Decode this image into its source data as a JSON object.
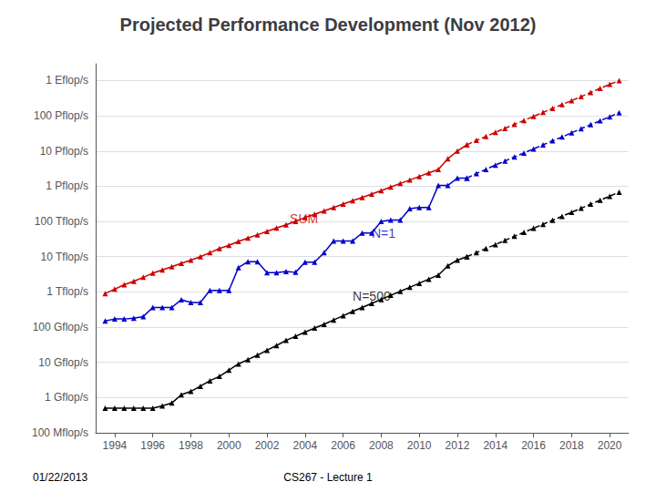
{
  "chart_data": {
    "type": "line",
    "title": "Projected Performance Development (Nov 2012)",
    "footer": [
      "01/22/2013",
      "CS267 - Lecture 1"
    ],
    "log": "y",
    "grid": true,
    "xlim": [
      1993.0,
      2021.0
    ],
    "xticks": [
      1994,
      1996,
      1998,
      2000,
      2002,
      2004,
      2006,
      2008,
      2010,
      2012,
      2014,
      2016,
      2018,
      2020
    ],
    "ylim": [
      100000000.0,
      3e+18
    ],
    "yticks": [
      {
        "value": 100000000.0,
        "label": "100 Mflop/s"
      },
      {
        "value": 1000000000.0,
        "label": "1 Gflop/s"
      },
      {
        "value": 10000000000.0,
        "label": "10 Gflop/s"
      },
      {
        "value": 100000000000.0,
        "label": "100 Gflop/s"
      },
      {
        "value": 1000000000000.0,
        "label": "1 Tflop/s"
      },
      {
        "value": 10000000000000.0,
        "label": "10 Tflop/s"
      },
      {
        "value": 100000000000000.0,
        "label": "100 Tflop/s"
      },
      {
        "value": 1000000000000000.0,
        "label": "1 Pflop/s"
      },
      {
        "value": 1e+16,
        "label": "10 Pflop/s"
      },
      {
        "value": 1e+17,
        "label": "100 Pflop/s"
      },
      {
        "value": 1e+18,
        "label": "1 Eflop/s"
      }
    ],
    "annotations": [
      {
        "text": "SUM",
        "x": 2003.2,
        "y": 80000000000000.0,
        "color": "#CC0000"
      },
      {
        "text": "N=1",
        "x": 2007.5,
        "y": 30000000000000.0,
        "color": "#0000CC"
      },
      {
        "text": "N=500",
        "x": 2006.5,
        "y": 500000000000.0,
        "color": "#000000"
      }
    ],
    "series": [
      {
        "color": "#CC0000",
        "line_style": "solid",
        "marker": "triangle",
        "x": [
          1993.5,
          1994.0,
          1994.5,
          1995.0,
          1995.5,
          1996.0,
          1996.5,
          1997.0,
          1997.5,
          1998.0,
          1998.5,
          1999.0,
          1999.5,
          2000.0,
          2000.5,
          2001.0,
          2001.5,
          2002.0,
          2002.5,
          2003.0,
          2003.5,
          2004.0,
          2004.5,
          2005.0,
          2005.5,
          2006.0,
          2006.5,
          2007.0,
          2007.5,
          2008.0,
          2008.5,
          2009.0,
          2009.5,
          2010.0,
          2010.5,
          2011.0,
          2011.5,
          2012.0,
          2012.5
        ],
        "values": [
          900000000000.0,
          1200000000000.0,
          1600000000000.0,
          2000000000000.0,
          2600000000000.0,
          3400000000000.0,
          4200000000000.0,
          5200000000000.0,
          6500000000000.0,
          8000000000000.0,
          10000000000000.0,
          13000000000000.0,
          17000000000000.0,
          21000000000000.0,
          27000000000000.0,
          34000000000000.0,
          42000000000000.0,
          52000000000000.0,
          65000000000000.0,
          80000000000000.0,
          100000000000000.0,
          130000000000000.0,
          160000000000000.0,
          200000000000000.0,
          250000000000000.0,
          310000000000000.0,
          390000000000000.0,
          480000000000000.0,
          600000000000000.0,
          750000000000000.0,
          950000000000000.0,
          1200000000000000.0,
          1500000000000000.0,
          1900000000000000.0,
          2400000000000000.0,
          3000000000000000.0,
          6000000000000000.0,
          1e+16,
          1.5e+16
        ]
      },
      {
        "color": "#CC0000",
        "line_style": "dashed",
        "marker": "triangle",
        "x": [
          2012.5,
          2013.0,
          2013.5,
          2014.0,
          2014.5,
          2015.0,
          2015.5,
          2016.0,
          2016.5,
          2017.0,
          2017.5,
          2018.0,
          2018.5,
          2019.0,
          2019.5,
          2020.0,
          2020.5
        ],
        "values": [
          1.5e+16,
          2e+16,
          2.6e+16,
          3.4e+16,
          4.4e+16,
          5.7e+16,
          7.4e+16,
          9.6e+16,
          1.25e+17,
          1.62e+17,
          2.1e+17,
          2.7e+17,
          3.5e+17,
          4.6e+17,
          6e+17,
          7.8e+17,
          1e+18
        ]
      },
      {
        "color": "#0000CC",
        "line_style": "solid",
        "marker": "triangle",
        "x": [
          1993.5,
          1994.0,
          1994.5,
          1995.0,
          1995.5,
          1996.0,
          1996.5,
          1997.0,
          1997.5,
          1998.0,
          1998.5,
          1999.0,
          1999.5,
          2000.0,
          2000.5,
          2001.0,
          2001.5,
          2002.0,
          2002.5,
          2003.0,
          2003.5,
          2004.0,
          2004.5,
          2005.0,
          2005.5,
          2006.0,
          2006.5,
          2007.0,
          2007.5,
          2008.0,
          2008.5,
          2009.0,
          2009.5,
          2010.0,
          2010.5,
          2011.0,
          2011.5,
          2012.0,
          2012.5
        ],
        "values": [
          150000000000.0,
          170000000000.0,
          170000000000.0,
          180000000000.0,
          200000000000.0,
          360000000000.0,
          360000000000.0,
          360000000000.0,
          600000000000.0,
          500000000000.0,
          500000000000.0,
          1100000000000.0,
          1100000000000.0,
          1100000000000.0,
          4900000000000.0,
          7200000000000.0,
          7200000000000.0,
          3500000000000.0,
          3500000000000.0,
          3800000000000.0,
          3600000000000.0,
          7000000000000.0,
          7000000000000.0,
          13000000000000.0,
          28000000000000.0,
          28000000000000.0,
          28000000000000.0,
          47000000000000.0,
          47000000000000.0,
          100000000000000.0,
          110000000000000.0,
          110000000000000.0,
          230000000000000.0,
          250000000000000.0,
          250000000000000.0,
          1050000000000000.0,
          1050000000000000.0,
          1700000000000000.0,
          1700000000000000.0
        ]
      },
      {
        "color": "#0000CC",
        "line_style": "dashed",
        "marker": "triangle",
        "x": [
          2012.5,
          2013.0,
          2013.5,
          2014.0,
          2014.5,
          2015.0,
          2015.5,
          2016.0,
          2016.5,
          2017.0,
          2017.5,
          2018.0,
          2018.5,
          2019.0,
          2019.5,
          2020.0,
          2020.5
        ],
        "values": [
          1700000000000000.0,
          2300000000000000.0,
          3000000000000000.0,
          4000000000000000.0,
          5200000000000000.0,
          6800000000000000.0,
          8800000000000000.0,
          1.15e+16,
          1.5e+16,
          1.95e+16,
          2.5e+16,
          3.3e+16,
          4.3e+16,
          5.6e+16,
          7.2e+16,
          9.4e+16,
          1.22e+17
        ]
      },
      {
        "color": "#000000",
        "line_style": "solid",
        "marker": "triangle",
        "x": [
          1993.5,
          1994.0,
          1994.5,
          1995.0,
          1995.5,
          1996.0,
          1996.5,
          1997.0,
          1997.5,
          1998.0,
          1998.5,
          1999.0,
          1999.5,
          2000.0,
          2000.5,
          2001.0,
          2001.5,
          2002.0,
          2002.5,
          2003.0,
          2003.5,
          2004.0,
          2004.5,
          2005.0,
          2005.5,
          2006.0,
          2006.5,
          2007.0,
          2007.5,
          2008.0,
          2008.5,
          2009.0,
          2009.5,
          2010.0,
          2010.5,
          2011.0,
          2011.5,
          2012.0,
          2012.5
        ],
        "values": [
          500000000.0,
          500000000.0,
          500000000.0,
          500000000.0,
          500000000.0,
          500000000.0,
          580000000.0,
          700000000.0,
          1200000000.0,
          1500000000.0,
          2100000000.0,
          3000000000.0,
          4000000000.0,
          6000000000.0,
          9000000000.0,
          12000000000.0,
          16000000000.0,
          22000000000.0,
          30000000000.0,
          42000000000.0,
          55000000000.0,
          72000000000.0,
          94000000000.0,
          120000000000.0,
          160000000000.0,
          210000000000.0,
          280000000000.0,
          360000000000.0,
          470000000000.0,
          610000000000.0,
          800000000000.0,
          1040000000000.0,
          1350000000000.0,
          1760000000000.0,
          2300000000000.0,
          3000000000000.0,
          5500000000000.0,
          8000000000000.0,
          10000000000000.0
        ]
      },
      {
        "color": "#000000",
        "line_style": "dashed",
        "marker": "triangle",
        "x": [
          2012.5,
          2013.0,
          2013.5,
          2014.0,
          2014.5,
          2015.0,
          2015.5,
          2016.0,
          2016.5,
          2017.0,
          2017.5,
          2018.0,
          2018.5,
          2019.0,
          2019.5,
          2020.0,
          2020.5
        ],
        "values": [
          10000000000000.0,
          13000000000000.0,
          17000000000000.0,
          22000000000000.0,
          29000000000000.0,
          38000000000000.0,
          49000000000000.0,
          64000000000000.0,
          83000000000000.0,
          108000000000000.0,
          140000000000000.0,
          182000000000000.0,
          237000000000000.0,
          310000000000000.0,
          400000000000000.0,
          520000000000000.0,
          680000000000000.0
        ]
      }
    ]
  }
}
